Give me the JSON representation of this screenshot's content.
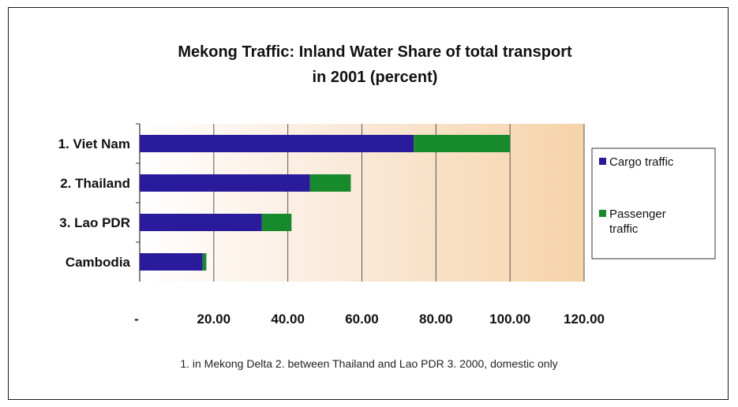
{
  "chart_data": {
    "type": "bar",
    "orientation": "horizontal",
    "stacked": true,
    "title_line1": "Mekong Traffic: Inland Water Share of total transport",
    "title_line2": "in 2001 (percent)",
    "categories": [
      "1. Viet Nam",
      "2. Thailand",
      "3. Lao PDR",
      "Cambodia"
    ],
    "series": [
      {
        "name": "Cargo traffic",
        "color": "#2a1a9c",
        "values": [
          74,
          46,
          33,
          17
        ]
      },
      {
        "name": "Passenger traffic",
        "color": "#178a2b",
        "values": [
          26,
          11,
          8,
          1
        ]
      }
    ],
    "xlim": [
      0,
      120
    ],
    "xticks": [
      0,
      20,
      40,
      60,
      80,
      100,
      120
    ],
    "xtick_labels": [
      "-",
      "20.00",
      "40.00",
      "60.00",
      "80.00",
      "100.00",
      "120.00"
    ],
    "grid": "vertical",
    "legend_position": "right",
    "plot_background": "#f6d3a8",
    "legend_labels": [
      [
        "Cargo traffic"
      ],
      [
        "Passenger",
        "traffic"
      ]
    ]
  },
  "footnote": "1. in Mekong Delta 2. between Thailand and Lao PDR 3. 2000, domestic only"
}
